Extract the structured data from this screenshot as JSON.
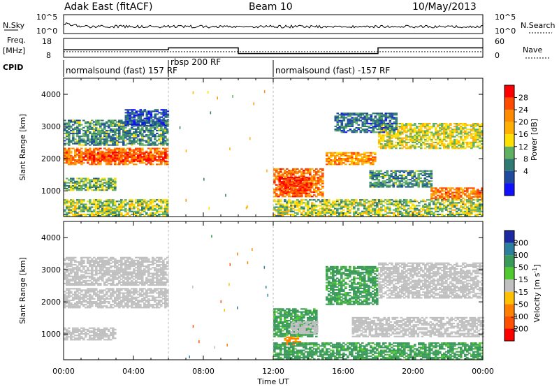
{
  "header": {
    "station": "Adak East (fitACF)",
    "beam": "Beam 10",
    "date": "10/May/2013"
  },
  "strip_labels": {
    "nsky": "N.Sky",
    "freq_top": "Freq.",
    "freq_bottom": "[MHz]",
    "cpid": "CPID",
    "nsearch": "N.Search",
    "nave": "Nave",
    "nsky_ticks": [
      "10^5",
      "10^0"
    ],
    "nsearch_ticks": [
      "10^5",
      "10^0"
    ],
    "freq_ticks": [
      "18",
      "8"
    ],
    "nave_ticks": [
      "60",
      "0"
    ]
  },
  "cpid_segments": [
    {
      "label": "normalsound (fast) 157 RF",
      "start_hour": 0,
      "end_hour": 6
    },
    {
      "label": "rbsp 200 RF",
      "start_hour": 6,
      "end_hour": 12
    },
    {
      "label": "normalsound (fast) -157 RF",
      "start_hour": 12,
      "end_hour": 24
    }
  ],
  "chart_data": [
    {
      "type": "heatmap",
      "name": "power",
      "ylabel": "Slant Range [km]",
      "xlabel": "Time UT",
      "x_ticks": [
        "00:00",
        "04:00",
        "08:00",
        "12:00",
        "16:00",
        "20:00",
        "00:00"
      ],
      "y_ticks": [
        1000,
        2000,
        3000,
        4000
      ],
      "xlim_hours": [
        0,
        24
      ],
      "ylim_km": [
        200,
        4500
      ],
      "colorbar": {
        "label": "Power [dB]",
        "ticks": [
          "28",
          "24",
          "20",
          "16",
          "12",
          "8",
          "4"
        ],
        "colors": [
          "#ff0000",
          "#ff4a00",
          "#ff8c00",
          "#ffb000",
          "#ffe000",
          "#5fb060",
          "#2f7a72",
          "#1f4aa0",
          "#1010ff"
        ]
      },
      "regions": [
        {
          "t0": 0.0,
          "t1": 6.0,
          "r0": 1800,
          "r1": 2300,
          "v": 24
        },
        {
          "t0": 1.2,
          "t1": 5.8,
          "r0": 1900,
          "r1": 2200,
          "v": 27
        },
        {
          "t0": 0.0,
          "t1": 3.0,
          "r0": 1000,
          "r1": 1400,
          "v": 12
        },
        {
          "t0": 0.0,
          "t1": 6.0,
          "r0": 2400,
          "r1": 3200,
          "v": 10
        },
        {
          "t0": 3.5,
          "t1": 6.0,
          "r0": 3000,
          "r1": 3500,
          "v": 6
        },
        {
          "t0": 0.0,
          "t1": 6.0,
          "r0": 200,
          "r1": 700,
          "v": 14
        },
        {
          "t0": 12.0,
          "t1": 14.8,
          "r0": 800,
          "r1": 1700,
          "v": 24
        },
        {
          "t0": 12.3,
          "t1": 14.2,
          "r0": 900,
          "r1": 1400,
          "v": 28
        },
        {
          "t0": 15.0,
          "t1": 17.8,
          "r0": 1800,
          "r1": 2200,
          "v": 22
        },
        {
          "t0": 17.5,
          "t1": 21.0,
          "r0": 1100,
          "r1": 1600,
          "v": 10
        },
        {
          "t0": 21.0,
          "t1": 24.0,
          "r0": 700,
          "r1": 1100,
          "v": 24
        },
        {
          "t0": 18.0,
          "t1": 24.0,
          "r0": 2300,
          "r1": 3100,
          "v": 16
        },
        {
          "t0": 15.5,
          "t1": 19.0,
          "r0": 2800,
          "r1": 3400,
          "v": 8
        },
        {
          "t0": 12.0,
          "t1": 24.0,
          "r0": 200,
          "r1": 700,
          "v": 14
        }
      ]
    },
    {
      "type": "heatmap",
      "name": "velocity",
      "ylabel": "Slant Range [km]",
      "xlabel": "Time UT",
      "x_ticks": [
        "00:00",
        "04:00",
        "08:00",
        "12:00",
        "16:00",
        "20:00",
        "00:00"
      ],
      "y_ticks": [
        1000,
        2000,
        3000,
        4000
      ],
      "xlim_hours": [
        0,
        24
      ],
      "ylim_km": [
        200,
        4500
      ],
      "colorbar": {
        "label_main": "Velocity [m s",
        "label_exp": "-1",
        "label_close": "]",
        "ticks": [
          "200",
          "100",
          "50",
          "15",
          "-15",
          "-50",
          "-100",
          "-200"
        ],
        "colors": [
          "#1b2aa0",
          "#2d7fa0",
          "#3a9a5a",
          "#50c830",
          "#c0c0c0",
          "#ffc000",
          "#ff8000",
          "#ff5000",
          "#ff0000"
        ]
      },
      "regions": [
        {
          "t0": 0.0,
          "t1": 6.0,
          "r0": 1800,
          "r1": 2400,
          "v": 0
        },
        {
          "t0": 0.0,
          "t1": 3.0,
          "r0": 800,
          "r1": 1200,
          "v": 0
        },
        {
          "t0": 0.0,
          "t1": 6.0,
          "r0": 2500,
          "r1": 3400,
          "v": 0
        },
        {
          "t0": 12.0,
          "t1": 14.5,
          "r0": 900,
          "r1": 1800,
          "v": 60
        },
        {
          "t0": 13.0,
          "t1": 14.5,
          "r0": 1000,
          "r1": 1400,
          "v": 0
        },
        {
          "t0": 12.5,
          "t1": 13.5,
          "r0": 650,
          "r1": 900,
          "v": -60
        },
        {
          "t0": 15.0,
          "t1": 18.0,
          "r0": 1900,
          "r1": 3100,
          "v": 60
        },
        {
          "t0": 18.0,
          "t1": 24.0,
          "r0": 2100,
          "r1": 3200,
          "v": 0
        },
        {
          "t0": 16.5,
          "t1": 24.0,
          "r0": 900,
          "r1": 1500,
          "v": 0
        },
        {
          "t0": 12.0,
          "t1": 24.0,
          "r0": 200,
          "r1": 700,
          "v": 60
        }
      ]
    }
  ],
  "freq_profile": [
    {
      "t0": 0,
      "t1": 6,
      "v": 12
    },
    {
      "t0": 6,
      "t1": 10,
      "v": 13
    },
    {
      "t0": 10,
      "t1": 18,
      "v": 10
    },
    {
      "t0": 18,
      "t1": 24,
      "v": 13
    }
  ]
}
